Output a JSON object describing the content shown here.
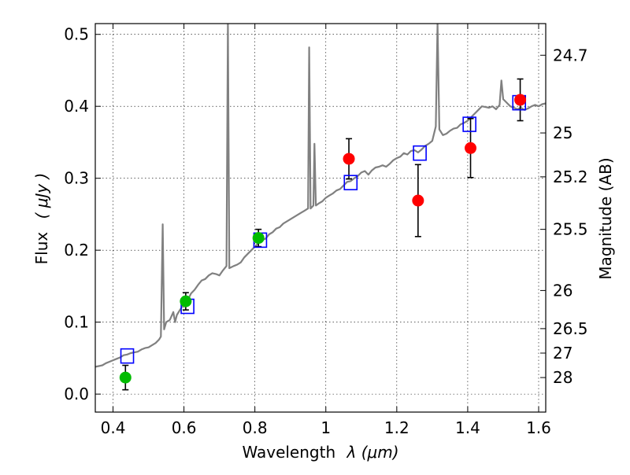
{
  "chart_data": {
    "type": "scatter",
    "xlabel_text": "Wavelength",
    "xlabel_math": "λ (μm)",
    "ylabel_text": "Flux",
    "ylabel_math": "( μJy )",
    "y2label": "Magnitude (AB)",
    "xlim": [
      0.35,
      1.62
    ],
    "ylim": [
      -0.025,
      0.515
    ],
    "grid": true,
    "x_ticks": [
      0.4,
      0.6,
      0.8,
      1.0,
      1.2,
      1.4,
      1.6
    ],
    "x_tick_labels": [
      "0.4",
      "0.6",
      "0.8",
      "1",
      "1.2",
      "1.4",
      "1.6"
    ],
    "y_ticks": [
      0.0,
      0.1,
      0.2,
      0.3,
      0.4,
      0.5
    ],
    "y_tick_labels": [
      "0.0",
      "0.1",
      "0.2",
      "0.3",
      "0.4",
      "0.5"
    ],
    "y2_ticks": [
      {
        "label": "24.7",
        "flux": 0.471
      },
      {
        "label": "25",
        "flux": 0.363
      },
      {
        "label": "25.2",
        "flux": 0.302
      },
      {
        "label": "25.5",
        "flux": 0.229
      },
      {
        "label": "26",
        "flux": 0.144
      },
      {
        "label": "26.5",
        "flux": 0.091
      },
      {
        "label": "27",
        "flux": 0.057
      },
      {
        "label": "28",
        "flux": 0.023
      }
    ],
    "spectrum": {
      "color": "#808080",
      "points": [
        [
          0.35,
          0.038
        ],
        [
          0.36,
          0.039
        ],
        [
          0.37,
          0.04
        ],
        [
          0.38,
          0.043
        ],
        [
          0.39,
          0.045
        ],
        [
          0.4,
          0.047
        ],
        [
          0.41,
          0.049
        ],
        [
          0.42,
          0.051
        ],
        [
          0.43,
          0.054
        ],
        [
          0.44,
          0.055
        ],
        [
          0.45,
          0.057
        ],
        [
          0.46,
          0.058
        ],
        [
          0.47,
          0.059
        ],
        [
          0.48,
          0.062
        ],
        [
          0.49,
          0.064
        ],
        [
          0.5,
          0.065
        ],
        [
          0.51,
          0.068
        ],
        [
          0.52,
          0.071
        ],
        [
          0.53,
          0.076
        ],
        [
          0.535,
          0.08
        ],
        [
          0.54,
          0.236
        ],
        [
          0.544,
          0.09
        ],
        [
          0.55,
          0.1
        ],
        [
          0.56,
          0.103
        ],
        [
          0.57,
          0.114
        ],
        [
          0.575,
          0.1
        ],
        [
          0.58,
          0.11
        ],
        [
          0.59,
          0.118
        ],
        [
          0.6,
          0.125
        ],
        [
          0.61,
          0.13
        ],
        [
          0.62,
          0.14
        ],
        [
          0.63,
          0.145
        ],
        [
          0.64,
          0.152
        ],
        [
          0.65,
          0.158
        ],
        [
          0.66,
          0.16
        ],
        [
          0.67,
          0.165
        ],
        [
          0.68,
          0.168
        ],
        [
          0.69,
          0.167
        ],
        [
          0.7,
          0.165
        ],
        [
          0.71,
          0.172
        ],
        [
          0.72,
          0.178
        ],
        [
          0.724,
          0.515
        ],
        [
          0.728,
          0.175
        ],
        [
          0.74,
          0.178
        ],
        [
          0.75,
          0.18
        ],
        [
          0.76,
          0.183
        ],
        [
          0.77,
          0.19
        ],
        [
          0.78,
          0.195
        ],
        [
          0.79,
          0.2
        ],
        [
          0.8,
          0.205
        ],
        [
          0.81,
          0.21
        ],
        [
          0.82,
          0.214
        ],
        [
          0.83,
          0.216
        ],
        [
          0.84,
          0.222
        ],
        [
          0.85,
          0.225
        ],
        [
          0.86,
          0.23
        ],
        [
          0.87,
          0.232
        ],
        [
          0.88,
          0.237
        ],
        [
          0.89,
          0.24
        ],
        [
          0.9,
          0.243
        ],
        [
          0.91,
          0.246
        ],
        [
          0.92,
          0.249
        ],
        [
          0.93,
          0.252
        ],
        [
          0.94,
          0.255
        ],
        [
          0.95,
          0.258
        ],
        [
          0.953,
          0.482
        ],
        [
          0.957,
          0.258
        ],
        [
          0.965,
          0.262
        ],
        [
          0.968,
          0.348
        ],
        [
          0.972,
          0.262
        ],
        [
          0.98,
          0.265
        ],
        [
          0.99,
          0.268
        ],
        [
          1.0,
          0.273
        ],
        [
          1.01,
          0.276
        ],
        [
          1.02,
          0.279
        ],
        [
          1.03,
          0.283
        ],
        [
          1.04,
          0.285
        ],
        [
          1.05,
          0.29
        ],
        [
          1.06,
          0.295
        ],
        [
          1.07,
          0.296
        ],
        [
          1.08,
          0.3
        ],
        [
          1.09,
          0.303
        ],
        [
          1.1,
          0.308
        ],
        [
          1.11,
          0.31
        ],
        [
          1.12,
          0.305
        ],
        [
          1.13,
          0.311
        ],
        [
          1.14,
          0.315
        ],
        [
          1.15,
          0.316
        ],
        [
          1.16,
          0.318
        ],
        [
          1.17,
          0.316
        ],
        [
          1.18,
          0.32
        ],
        [
          1.19,
          0.325
        ],
        [
          1.2,
          0.328
        ],
        [
          1.21,
          0.33
        ],
        [
          1.22,
          0.335
        ],
        [
          1.23,
          0.333
        ],
        [
          1.24,
          0.338
        ],
        [
          1.25,
          0.339
        ],
        [
          1.26,
          0.336
        ],
        [
          1.27,
          0.34
        ],
        [
          1.28,
          0.345
        ],
        [
          1.29,
          0.348
        ],
        [
          1.3,
          0.352
        ],
        [
          1.31,
          0.372
        ],
        [
          1.315,
          0.515
        ],
        [
          1.32,
          0.368
        ],
        [
          1.33,
          0.36
        ],
        [
          1.34,
          0.362
        ],
        [
          1.35,
          0.366
        ],
        [
          1.36,
          0.369
        ],
        [
          1.37,
          0.37
        ],
        [
          1.38,
          0.375
        ],
        [
          1.39,
          0.377
        ],
        [
          1.4,
          0.38
        ],
        [
          1.41,
          0.385
        ],
        [
          1.42,
          0.39
        ],
        [
          1.43,
          0.395
        ],
        [
          1.44,
          0.4
        ],
        [
          1.45,
          0.399
        ],
        [
          1.46,
          0.398
        ],
        [
          1.47,
          0.4
        ],
        [
          1.48,
          0.396
        ],
        [
          1.49,
          0.402
        ],
        [
          1.495,
          0.436
        ],
        [
          1.5,
          0.41
        ],
        [
          1.51,
          0.405
        ],
        [
          1.52,
          0.4
        ],
        [
          1.53,
          0.398
        ],
        [
          1.54,
          0.396
        ],
        [
          1.55,
          0.398
        ],
        [
          1.56,
          0.395
        ],
        [
          1.57,
          0.397
        ],
        [
          1.58,
          0.4
        ],
        [
          1.59,
          0.402
        ],
        [
          1.6,
          0.4
        ],
        [
          1.61,
          0.403
        ],
        [
          1.62,
          0.404
        ]
      ]
    },
    "model_photometry": {
      "color": "#0000ff",
      "x": [
        0.44,
        0.61,
        0.815,
        1.07,
        1.265,
        1.405,
        1.545
      ],
      "y": [
        0.053,
        0.122,
        0.214,
        0.294,
        0.335,
        0.375,
        0.405
      ]
    },
    "observed_optical": {
      "color": "#00bb00",
      "x": [
        0.435,
        0.605,
        0.81
      ],
      "y": [
        0.023,
        0.129,
        0.217
      ],
      "err": [
        0.017,
        0.012,
        0.012
      ]
    },
    "observed_nir": {
      "color": "#ff0000",
      "x": [
        1.065,
        1.26,
        1.408,
        1.548
      ],
      "y": [
        0.327,
        0.269,
        0.342,
        0.409
      ],
      "err": [
        0.028,
        0.05,
        0.041,
        0.029
      ]
    }
  }
}
